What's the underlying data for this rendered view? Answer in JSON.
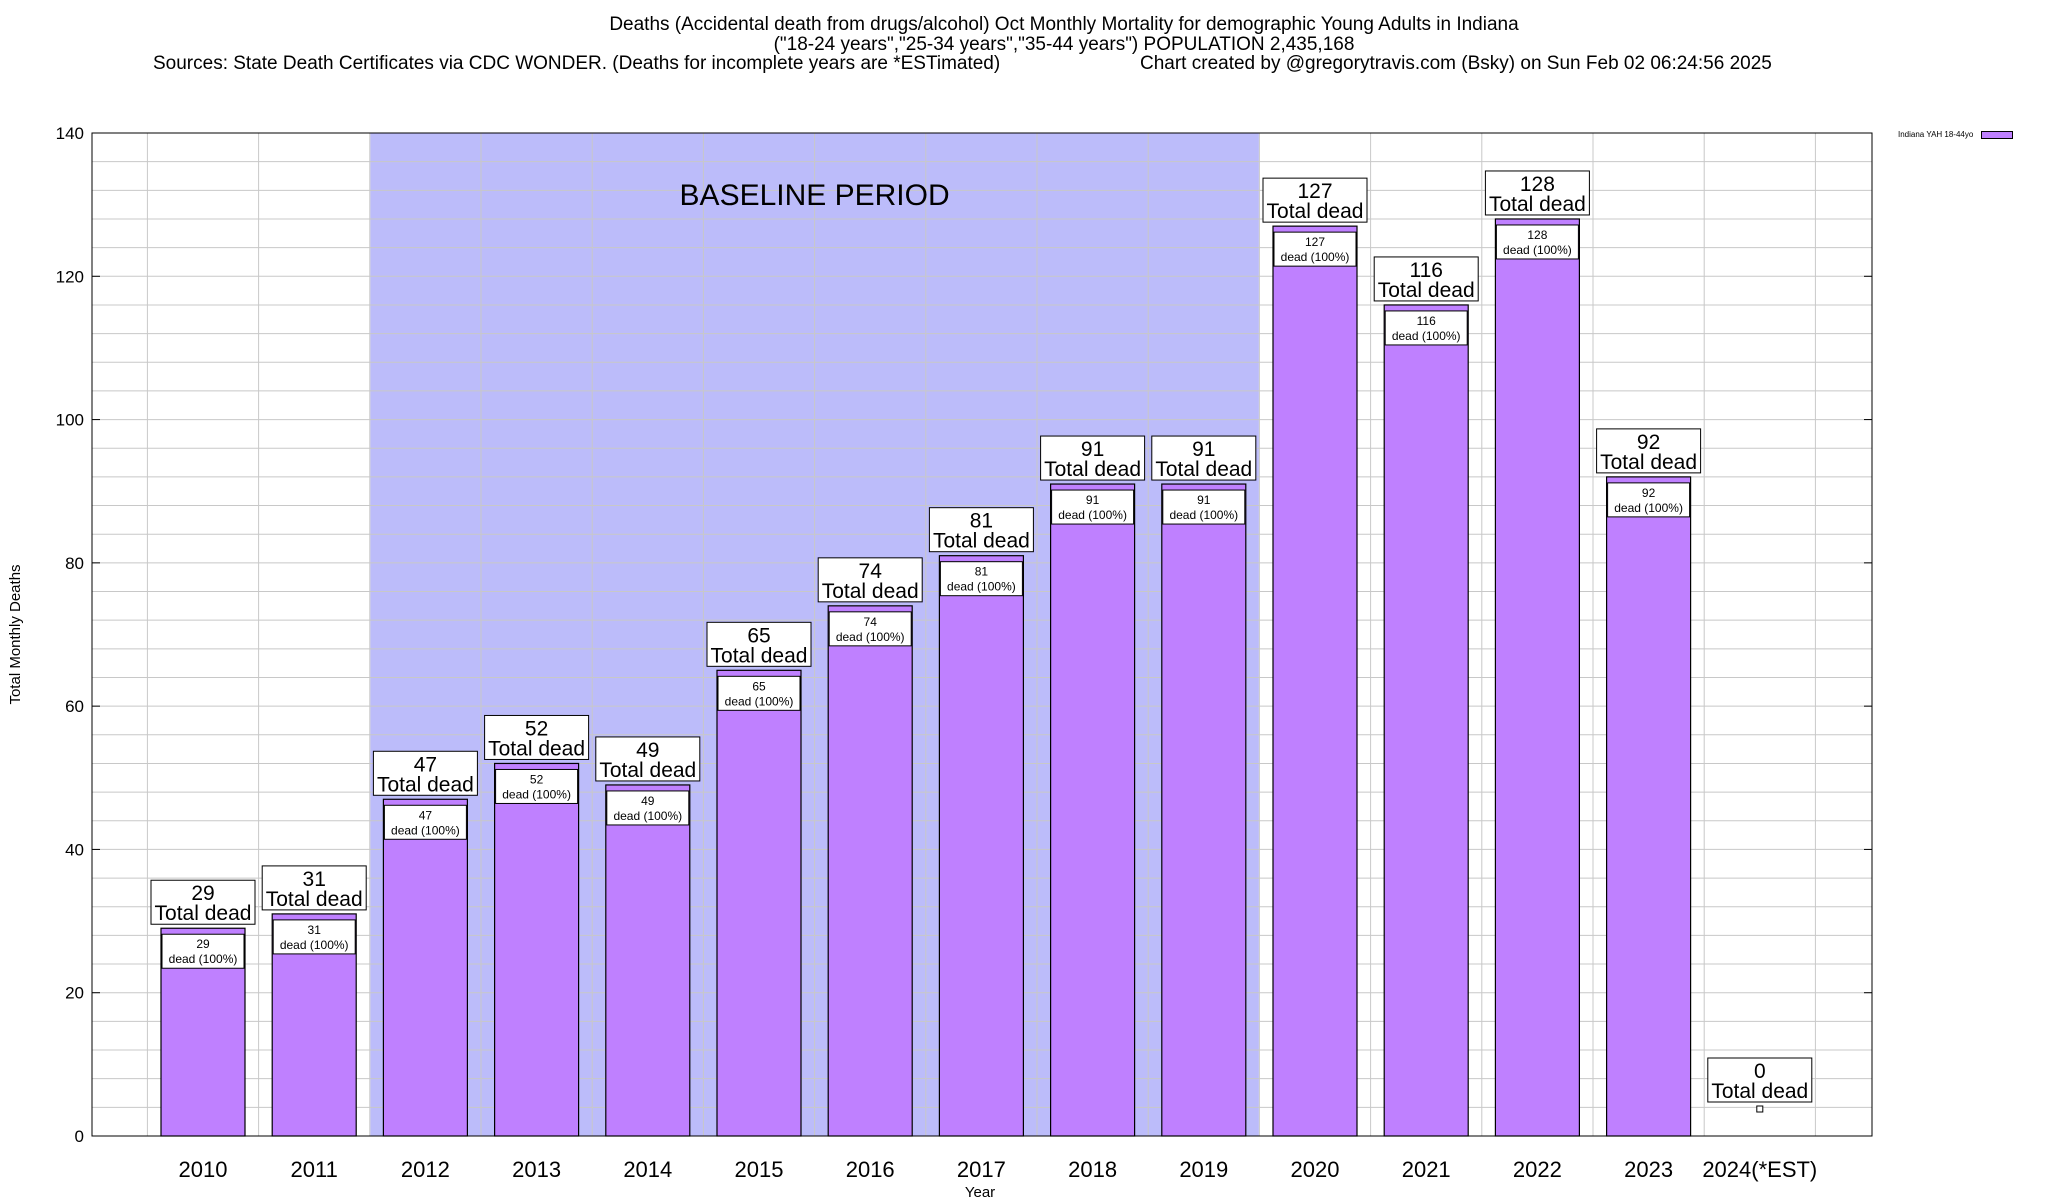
{
  "header": {
    "line1": "Deaths (Accidental death from drugs/alcohol) Oct Monthly Mortality for demographic Young Adults in Indiana",
    "line2": "(\"18-24 years\",\"25-34 years\",\"35-44 years\") POPULATION 2,435,168",
    "sources": "Sources: State Death Certificates via CDC WONDER. (Deaths for incomplete years are *ESTimated)",
    "credit": "Chart created by @gregorytravis.com (Bsky) on Sun Feb 02 06:24:56 2025"
  },
  "legend": {
    "label": "Indiana YAH 18-44yo"
  },
  "colors": {
    "bar": "#bf80ff",
    "baseline": "#bcbcfa",
    "grid": "#c8c8c8"
  },
  "chart_data": {
    "type": "bar",
    "title": "Deaths (Accidental death from drugs/alcohol) Oct Monthly Mortality for demographic Young Adults in Indiana",
    "xlabel": "Year",
    "ylabel": "Total Monthly Deaths",
    "ylim": [
      0,
      140
    ],
    "yticks": [
      0,
      20,
      40,
      60,
      80,
      100,
      120,
      140
    ],
    "grid": true,
    "legend_position": "top-right",
    "categories": [
      "2010",
      "2011",
      "2012",
      "2013",
      "2014",
      "2015",
      "2016",
      "2017",
      "2018",
      "2019",
      "2020",
      "2021",
      "2022",
      "2023",
      "2024(*EST)"
    ],
    "series": [
      {
        "name": "Indiana YAH 18-44yo",
        "values": [
          29,
          31,
          47,
          52,
          49,
          65,
          74,
          81,
          91,
          91,
          127,
          116,
          128,
          92,
          0
        ]
      }
    ],
    "top_label_suffix": "Total dead",
    "inner_label_suffix": "dead (100%)",
    "baseline_period": {
      "label": "BASELINE PERIOD",
      "from": "2012",
      "to": "2019"
    }
  }
}
